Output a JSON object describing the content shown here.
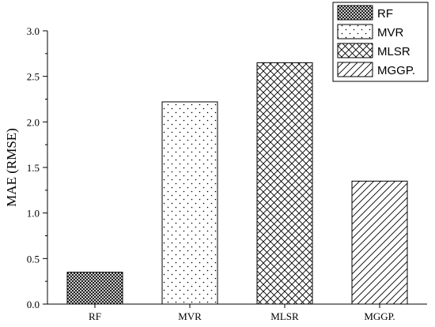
{
  "chart_data": {
    "type": "bar",
    "categories": [
      "RF",
      "MVR",
      "MLSR",
      "MGGP."
    ],
    "series": [
      {
        "name": "",
        "values": [
          0.35,
          2.22,
          2.65,
          1.35
        ]
      }
    ],
    "patterns": [
      "crosshatch-dense",
      "dots",
      "crosshatch-diagonal",
      "diagonal-lines"
    ],
    "xlabel": "",
    "ylabel": "MAE (RMSE)",
    "ylim": [
      0,
      3.0
    ],
    "yticks": [
      "0.0",
      "0.5",
      "1.0",
      "1.5",
      "2.0",
      "2.5",
      "3.0"
    ],
    "grid": false,
    "legend": {
      "placement": "top-right",
      "entries": [
        "RF",
        "MVR",
        "MLSR",
        "MGGP."
      ]
    }
  }
}
